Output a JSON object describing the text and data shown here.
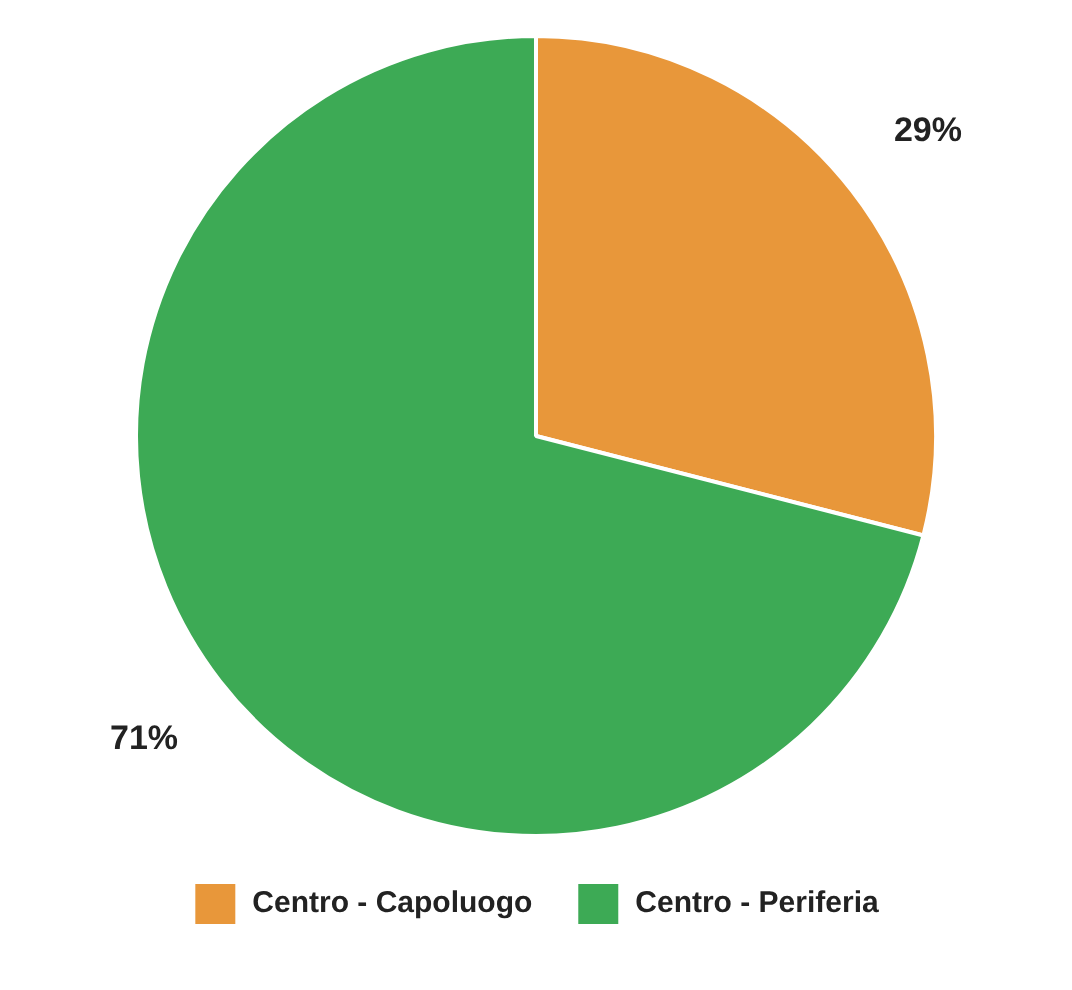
{
  "chart_data": {
    "type": "pie",
    "categories": [
      "Centro - Capoluogo",
      "Centro - Periferia"
    ],
    "values": [
      29,
      71
    ],
    "colors": [
      "#e8973a",
      "#3daa55"
    ],
    "value_labels": [
      "29%",
      "71%"
    ],
    "legend": "bottom"
  }
}
